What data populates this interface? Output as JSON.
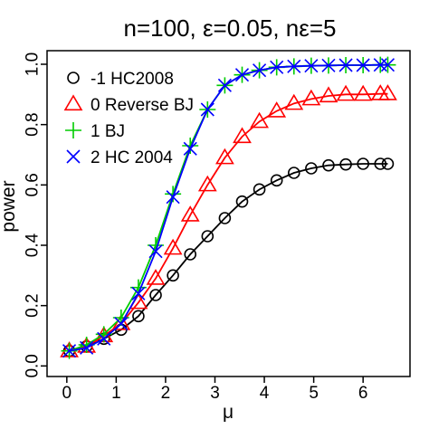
{
  "chart_data": {
    "type": "line",
    "title": "n=100, ε=0.05, nε=5",
    "xlabel": "μ",
    "ylabel": "power",
    "xlim": [
      0,
      6.6
    ],
    "ylim": [
      0,
      1.0
    ],
    "xticks": [
      "0",
      "1",
      "2",
      "3",
      "4",
      "5",
      "6"
    ],
    "yticks": [
      "0.0",
      "0.2",
      "0.4",
      "0.6",
      "0.8",
      "1.0"
    ],
    "grid": false,
    "legend_position": "top-left",
    "x": [
      0.05,
      0.4,
      0.75,
      1.1,
      1.45,
      1.8,
      2.15,
      2.5,
      2.85,
      3.2,
      3.55,
      3.9,
      4.25,
      4.6,
      4.95,
      5.3,
      5.65,
      6.0,
      6.35,
      6.5
    ],
    "series": [
      {
        "name": "-1 HC2008",
        "color": "#000000",
        "marker": "circle",
        "values": [
          0.05,
          0.065,
          0.09,
          0.12,
          0.165,
          0.235,
          0.3,
          0.37,
          0.43,
          0.49,
          0.545,
          0.585,
          0.615,
          0.64,
          0.655,
          0.665,
          0.668,
          0.67,
          0.67,
          0.67
        ]
      },
      {
        "name": "0 Reverse BJ",
        "color": "#ff0000",
        "marker": "triangle",
        "values": [
          0.05,
          0.065,
          0.1,
          0.14,
          0.21,
          0.29,
          0.39,
          0.5,
          0.6,
          0.69,
          0.76,
          0.81,
          0.845,
          0.87,
          0.885,
          0.895,
          0.9,
          0.9,
          0.902,
          0.902
        ]
      },
      {
        "name": "1 BJ",
        "color": "#00cc00",
        "marker": "plus",
        "values": [
          0.05,
          0.07,
          0.105,
          0.16,
          0.26,
          0.4,
          0.57,
          0.73,
          0.85,
          0.93,
          0.965,
          0.98,
          0.99,
          0.993,
          0.995,
          0.996,
          0.997,
          0.997,
          0.998,
          0.998
        ]
      },
      {
        "name": "2 HC 2004",
        "color": "#0000ff",
        "marker": "x",
        "values": [
          0.05,
          0.06,
          0.09,
          0.14,
          0.24,
          0.38,
          0.56,
          0.72,
          0.85,
          0.93,
          0.965,
          0.98,
          0.99,
          0.993,
          0.995,
          0.996,
          0.997,
          0.997,
          0.998,
          0.998
        ]
      }
    ]
  }
}
